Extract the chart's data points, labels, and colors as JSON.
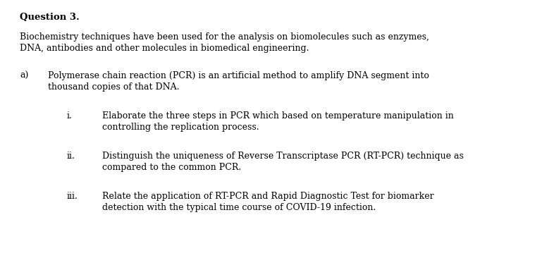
{
  "background_color": "#ffffff",
  "title": "Question 3.",
  "intro_line1": "Biochemistry techniques have been used for the analysis on biomolecules such as enzymes,",
  "intro_line2": "DNA, antibodies and other molecules in biomedical engineering.",
  "part_a_label": "a)",
  "part_a_line1": "Polymerase chain reaction (PCR) is an artificial method to amplify DNA segment into",
  "part_a_line2": "thousand copies of that DNA.",
  "items": [
    {
      "label": "i.",
      "line1": "Elaborate the three steps in PCR which based on temperature manipulation in",
      "line2": "controlling the replication process."
    },
    {
      "label": "ii.",
      "line1": "Distinguish the uniqueness of Reverse Transcriptase PCR (RT-PCR) technique as",
      "line2": "compared to the common PCR."
    },
    {
      "label": "iii.",
      "line1": "Relate the application of RT-PCR and Rapid Diagnostic Test for biomarker",
      "line2": "detection with the typical time course of COVID-19 infection."
    }
  ],
  "font_family": "DejaVu Serif",
  "title_fontsize": 9.5,
  "body_fontsize": 9.0,
  "text_color": "#000000",
  "fig_width": 7.86,
  "fig_height": 3.93,
  "dpi": 100
}
